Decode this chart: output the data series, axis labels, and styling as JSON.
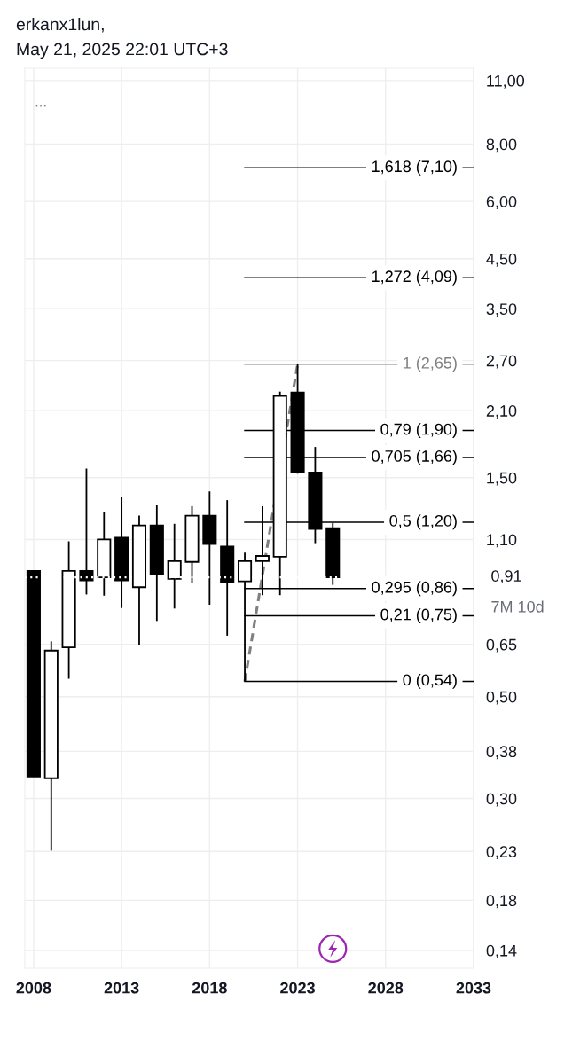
{
  "chart_data": {
    "type": "candlestick",
    "title": "erkanx1lun,",
    "subtitle": "May 21, 2025 22:01 UTC+3",
    "x": [
      2008,
      2009,
      2010,
      2011,
      2012,
      2013,
      2014,
      2015,
      2016,
      2017,
      2018,
      2019,
      2020,
      2021,
      2022,
      2023,
      2024,
      2025
    ],
    "ohlc": [
      [
        0.94,
        0.94,
        0.335,
        0.335
      ],
      [
        0.332,
        0.66,
        0.231,
        0.63
      ],
      [
        0.64,
        1.09,
        0.547,
        0.94
      ],
      [
        0.94,
        1.57,
        0.835,
        0.896
      ],
      [
        0.91,
        1.26,
        0.83,
        1.1
      ],
      [
        1.11,
        1.36,
        0.78,
        0.896
      ],
      [
        0.866,
        1.24,
        0.647,
        1.18
      ],
      [
        1.18,
        1.31,
        0.731,
        0.923
      ],
      [
        0.903,
        1.19,
        0.778,
        0.987
      ],
      [
        0.983,
        1.3,
        0.883,
        1.24
      ],
      [
        1.24,
        1.4,
        0.793,
        1.075
      ],
      [
        1.062,
        1.34,
        0.679,
        0.887
      ],
      [
        0.892,
        1.03,
        0.54,
        0.987
      ],
      [
        0.987,
        1.3,
        0.832,
        1.013
      ],
      [
        1.009,
        2.31,
        0.832,
        2.26
      ],
      [
        2.3,
        2.65,
        1.53,
        1.54
      ],
      [
        1.54,
        1.75,
        1.08,
        1.16
      ],
      [
        1.165,
        1.196,
        0.876,
        0.91
      ]
    ],
    "colors": [
      "#000000",
      "#ffffff",
      "#ffffff",
      "#000000",
      "#ffffff",
      "#000000",
      "#ffffff",
      "#000000",
      "#ffffff",
      "#ffffff",
      "#000000",
      "#000000",
      "#ffffff",
      "#ffffff",
      "#ffffff",
      "#000000",
      "#000000",
      "#000000"
    ],
    "series": [
      {
        "type": "line",
        "x": [
          2020,
          2023
        ],
        "values": [
          0.54,
          2.65
        ],
        "color": "#808080",
        "line_style": "dashed"
      }
    ],
    "xlim": [
      2007.5,
      2033
    ],
    "xticks": [
      2008,
      2013,
      2018,
      2023,
      2028,
      2033
    ],
    "ylim": [
      0.128,
      11.7
    ],
    "yticks": [
      {
        "value": 0.14,
        "label": "0,14"
      },
      {
        "value": 0.18,
        "label": "0,18"
      },
      {
        "value": 0.23,
        "label": "0,23"
      },
      {
        "value": 0.3,
        "label": "0,30"
      },
      {
        "value": 0.38,
        "label": "0,38"
      },
      {
        "value": 0.5,
        "label": "0,50"
      },
      {
        "value": 0.65,
        "label": "0,65"
      },
      {
        "value": 1.1,
        "label": "1,10"
      },
      {
        "value": 1.5,
        "label": "1,50"
      },
      {
        "value": 2.1,
        "label": "2,10"
      },
      {
        "value": 2.7,
        "label": "2,70"
      },
      {
        "value": 3.5,
        "label": "3,50"
      },
      {
        "value": 4.5,
        "label": "4,50"
      },
      {
        "value": 6,
        "label": "6,00"
      },
      {
        "value": 8,
        "label": "8,00"
      },
      {
        "value": 11,
        "label": "11,00"
      }
    ],
    "log": true,
    "grid": true,
    "ref_lines": [
      {
        "axis": "y",
        "value": 7.1,
        "label": "1,618 (7,10)",
        "color": "#000000",
        "line_style": "solid"
      },
      {
        "axis": "y",
        "value": 4.09,
        "label": "1,272 (4,09)",
        "color": "#000000",
        "line_style": "solid"
      },
      {
        "axis": "y",
        "value": 2.65,
        "label": "1 (2,65)",
        "color": "#808080",
        "line_style": "solid"
      },
      {
        "axis": "y",
        "value": 1.9,
        "label": "0,79 (1,90)",
        "color": "#000000",
        "line_style": "solid"
      },
      {
        "axis": "y",
        "value": 1.66,
        "label": "0,705 (1,66)",
        "color": "#000000",
        "line_style": "solid"
      },
      {
        "axis": "y",
        "value": 1.2,
        "label": "0,5 (1,20)",
        "color": "#000000",
        "line_style": "solid"
      },
      {
        "axis": "y",
        "value": 0.86,
        "label": "0,295 (0,86)",
        "color": "#000000",
        "line_style": "solid"
      },
      {
        "axis": "y",
        "value": 0.75,
        "label": "0,21 (0,75)",
        "color": "#000000",
        "line_style": "solid"
      },
      {
        "axis": "y",
        "value": 0.54,
        "label": "0 (0,54)",
        "color": "#000000",
        "line_style": "solid"
      },
      {
        "axis": "y",
        "value": 0.91,
        "label": "0,91",
        "color": "#ffffff",
        "line_style": "dotted"
      }
    ],
    "annotations": [
      "...",
      "7M 10d"
    ]
  }
}
